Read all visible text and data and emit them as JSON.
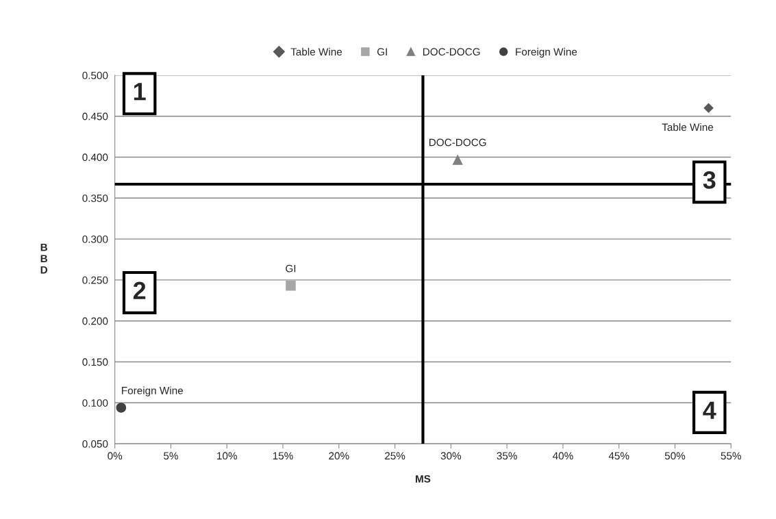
{
  "chart_data": {
    "type": "scatter",
    "xlabel": "MS",
    "ylabel": "BBD",
    "series": [
      {
        "name": "Table Wine",
        "color": "#595959",
        "marker": "diamond",
        "x": [
          53.0
        ],
        "values": [
          0.46
        ]
      },
      {
        "name": "GI",
        "color": "#a6a6a6",
        "marker": "square",
        "x": [
          15.7
        ],
        "values": [
          0.243
        ]
      },
      {
        "name": "DOC-DOCG",
        "color": "#7f7f7f",
        "marker": "triangle",
        "x": [
          30.6
        ],
        "values": [
          0.397
        ]
      },
      {
        "name": "Foreign Wine",
        "color": "#404040",
        "marker": "circle",
        "x": [
          0.56
        ],
        "values": [
          0.094
        ]
      }
    ],
    "xlim": [
      0,
      55
    ],
    "xticks": [
      {
        "value": 0,
        "label": "0%"
      },
      {
        "value": 5,
        "label": "5%"
      },
      {
        "value": 10,
        "label": "10%"
      },
      {
        "value": 15,
        "label": "15%"
      },
      {
        "value": 20,
        "label": "20%"
      },
      {
        "value": 25,
        "label": "25%"
      },
      {
        "value": 30,
        "label": "30%"
      },
      {
        "value": 35,
        "label": "35%"
      },
      {
        "value": 40,
        "label": "40%"
      },
      {
        "value": 45,
        "label": "45%"
      },
      {
        "value": 50,
        "label": "50%"
      },
      {
        "value": 55,
        "label": "55%"
      }
    ],
    "ylim": [
      0.05,
      0.5
    ],
    "yticks": [
      {
        "value": 0.05,
        "label": "0.050"
      },
      {
        "value": 0.1,
        "label": "0.100"
      },
      {
        "value": 0.15,
        "label": "0.150"
      },
      {
        "value": 0.2,
        "label": "0.200"
      },
      {
        "value": 0.25,
        "label": "0.250"
      },
      {
        "value": 0.3,
        "label": "0.300"
      },
      {
        "value": 0.35,
        "label": "0.350"
      },
      {
        "value": 0.4,
        "label": "0.400"
      },
      {
        "value": 0.45,
        "label": "0.450"
      },
      {
        "value": 0.5,
        "label": "0.500"
      }
    ],
    "ref_lines": [
      {
        "axis": "x",
        "value": 27.5,
        "color": "#000000"
      },
      {
        "axis": "y",
        "value": 0.367,
        "color": "#000000"
      }
    ],
    "annotations": [
      "1",
      "2",
      "3",
      "4"
    ],
    "grid": "y",
    "legend": "top"
  }
}
